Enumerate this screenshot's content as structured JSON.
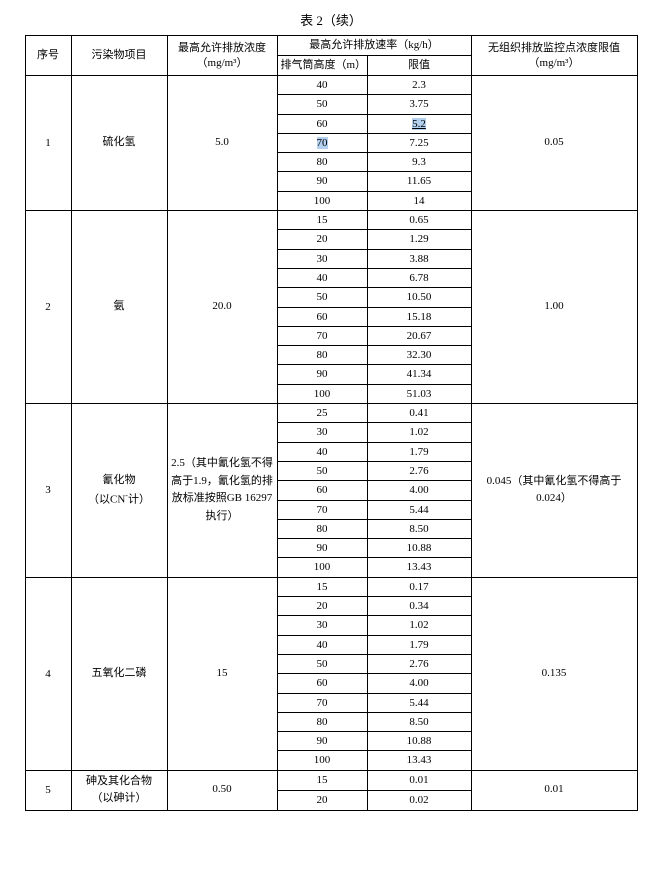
{
  "title": "表 2（续）",
  "headers": {
    "seq": "序号",
    "pollutant": "污染物项目",
    "maxConc": "最高允许排放浓度",
    "maxConcUnit": "（mg/m³）",
    "emissionRate": "最高允许排放速率（kg/h）",
    "stackHeight": "排气筒高度（m）",
    "limit": "限值",
    "monitorLimit": "无组织排放监控点浓度限值",
    "monitorUnit": "（mg/m³）"
  },
  "rows": [
    {
      "seq": "1",
      "pollutant": "硫化氢",
      "conc": "5.0",
      "monitor": "0.05",
      "data": [
        {
          "h": "40",
          "v": "2.3"
        },
        {
          "h": "50",
          "v": "3.75"
        },
        {
          "h": "60",
          "v": "5.2",
          "hlv": true
        },
        {
          "h": "70",
          "v": "7.25",
          "hlh": true
        },
        {
          "h": "80",
          "v": "9.3"
        },
        {
          "h": "90",
          "v": "11.65"
        },
        {
          "h": "100",
          "v": "14"
        }
      ]
    },
    {
      "seq": "2",
      "pollutant": "氨",
      "conc": "20.0",
      "monitor": "1.00",
      "data": [
        {
          "h": "15",
          "v": "0.65"
        },
        {
          "h": "20",
          "v": "1.29"
        },
        {
          "h": "30",
          "v": "3.88"
        },
        {
          "h": "40",
          "v": "6.78"
        },
        {
          "h": "50",
          "v": "10.50"
        },
        {
          "h": "60",
          "v": "15.18"
        },
        {
          "h": "70",
          "v": "20.67"
        },
        {
          "h": "80",
          "v": "32.30"
        },
        {
          "h": "90",
          "v": "41.34"
        },
        {
          "h": "100",
          "v": "51.03"
        }
      ]
    },
    {
      "seq": "3",
      "pollutant": "氰化物\n（以CN⁻计）",
      "conc": "2.5（其中氰化氢不得高于1.9，氰化氢的排放标准按照GB 16297执行）",
      "monitor": "0.045（其中氰化氢不得高于0.024）",
      "data": [
        {
          "h": "25",
          "v": "0.41"
        },
        {
          "h": "30",
          "v": "1.02"
        },
        {
          "h": "40",
          "v": "1.79"
        },
        {
          "h": "50",
          "v": "2.76"
        },
        {
          "h": "60",
          "v": "4.00"
        },
        {
          "h": "70",
          "v": "5.44"
        },
        {
          "h": "80",
          "v": "8.50"
        },
        {
          "h": "90",
          "v": "10.88"
        },
        {
          "h": "100",
          "v": "13.43"
        }
      ]
    },
    {
      "seq": "4",
      "pollutant": "五氧化二磷",
      "conc": "15",
      "monitor": "0.135",
      "data": [
        {
          "h": "15",
          "v": "0.17"
        },
        {
          "h": "20",
          "v": "0.34"
        },
        {
          "h": "30",
          "v": "1.02"
        },
        {
          "h": "40",
          "v": "1.79"
        },
        {
          "h": "50",
          "v": "2.76"
        },
        {
          "h": "60",
          "v": "4.00"
        },
        {
          "h": "70",
          "v": "5.44"
        },
        {
          "h": "80",
          "v": "8.50"
        },
        {
          "h": "90",
          "v": "10.88"
        },
        {
          "h": "100",
          "v": "13.43"
        }
      ]
    },
    {
      "seq": "5",
      "pollutant": "砷及其化合物\n（以砷计）",
      "conc": "0.50",
      "monitor": "0.01",
      "data": [
        {
          "h": "15",
          "v": "0.01"
        },
        {
          "h": "20",
          "v": "0.02"
        }
      ]
    }
  ]
}
